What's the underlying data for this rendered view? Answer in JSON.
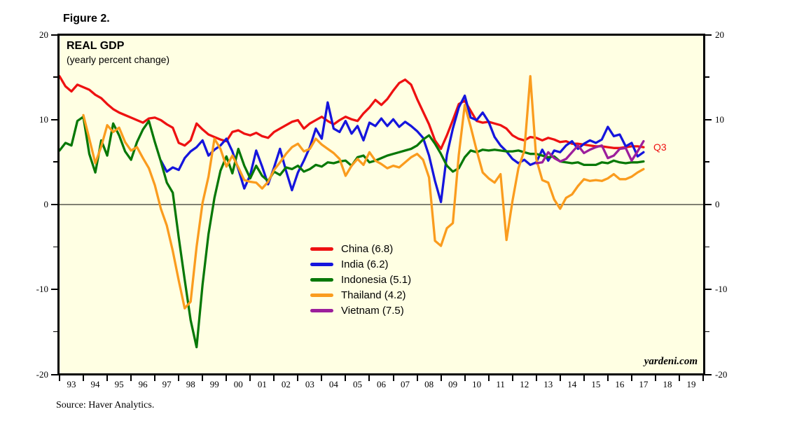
{
  "figure_label": "Figure 2.",
  "chart": {
    "title": "REAL GDP",
    "subtitle": "(yearly percent change)",
    "watermark": "yardeni.com",
    "source_note": "Source: Haver Analytics.",
    "background_color": "#FFFFE3",
    "annotation": {
      "text": "Q3",
      "color": "#EE1111"
    }
  },
  "chart_data": {
    "type": "line",
    "title": "REAL GDP",
    "subtitle": "(yearly percent change)",
    "x_axis": {
      "start": 1993,
      "end": 2020,
      "tick_every_years": 1,
      "tick_labels": [
        "93",
        "94",
        "95",
        "96",
        "97",
        "98",
        "99",
        "00",
        "01",
        "02",
        "03",
        "04",
        "05",
        "06",
        "07",
        "08",
        "09",
        "10",
        "11",
        "12",
        "13",
        "14",
        "15",
        "16",
        "17",
        "18",
        "19"
      ]
    },
    "ylim": [
      -20,
      20
    ],
    "y_ticks_major": [
      20,
      10,
      0,
      -10,
      -20
    ],
    "y_ticks_minor": [
      15,
      5,
      -5,
      -15
    ],
    "zero_line": true,
    "points_per_year": 4,
    "legend_position": "center-left",
    "series": [
      {
        "name": "China",
        "label": "China (6.8)",
        "color": "#EE1111",
        "start": 1993.0,
        "values": [
          15.2,
          14.0,
          13.4,
          14.2,
          13.9,
          13.6,
          13.0,
          12.6,
          11.9,
          11.3,
          10.9,
          10.6,
          10.3,
          10.0,
          9.7,
          10.2,
          10.3,
          10.0,
          9.5,
          9.1,
          7.3,
          7.0,
          7.6,
          9.6,
          8.9,
          8.3,
          8.0,
          7.7,
          7.5,
          8.6,
          8.8,
          8.4,
          8.2,
          8.5,
          8.1,
          7.9,
          8.6,
          9.0,
          9.4,
          9.8,
          10.0,
          9.0,
          9.6,
          10.0,
          10.4,
          9.9,
          9.5,
          10.0,
          10.4,
          10.1,
          9.9,
          10.8,
          11.5,
          12.4,
          11.8,
          12.5,
          13.5,
          14.4,
          14.8,
          14.2,
          12.5,
          11.0,
          9.5,
          7.6,
          6.6,
          8.2,
          10.0,
          11.9,
          12.3,
          11.1,
          9.9,
          9.7,
          9.8,
          9.6,
          9.4,
          9.0,
          8.2,
          7.8,
          7.6,
          8.0,
          7.9,
          7.6,
          7.9,
          7.7,
          7.4,
          7.5,
          7.2,
          7.2,
          7.1,
          7.0,
          6.9,
          6.9,
          6.8,
          6.7,
          6.7,
          6.8,
          6.9,
          6.9,
          6.8
        ]
      },
      {
        "name": "India",
        "label": "India (6.2)",
        "color": "#1515DD",
        "start": 1997.25,
        "values": [
          5.2,
          3.9,
          4.4,
          4.1,
          5.5,
          6.3,
          6.8,
          7.6,
          5.8,
          6.5,
          7.0,
          7.8,
          6.3,
          4.2,
          1.9,
          3.5,
          6.4,
          4.5,
          2.4,
          4.4,
          6.6,
          4.0,
          1.7,
          3.8,
          5.2,
          6.8,
          9.0,
          7.8,
          12.1,
          9.0,
          8.6,
          9.9,
          8.4,
          9.3,
          7.6,
          9.7,
          9.3,
          10.2,
          9.3,
          10.1,
          9.2,
          9.8,
          9.3,
          8.7,
          7.9,
          5.8,
          2.8,
          0.3,
          5.9,
          9.0,
          11.5,
          12.9,
          10.3,
          10.0,
          10.9,
          9.8,
          8.0,
          7.0,
          6.3,
          5.4,
          4.9,
          5.3,
          4.7,
          5.0,
          6.5,
          5.2,
          6.4,
          6.2,
          7.0,
          7.5,
          6.6,
          7.2,
          7.6,
          7.3,
          7.7,
          9.2,
          8.1,
          8.3,
          6.9,
          7.3,
          5.7,
          6.2
        ]
      },
      {
        "name": "Indonesia",
        "label": "Indonesia (5.1)",
        "color": "#077807",
        "start": 1993.0,
        "values": [
          6.4,
          7.3,
          7.0,
          9.9,
          10.4,
          6.0,
          3.8,
          7.6,
          5.8,
          9.6,
          8.2,
          6.3,
          5.3,
          7.4,
          8.9,
          9.9,
          7.4,
          5.1,
          2.6,
          1.4,
          -3.9,
          -8.9,
          -13.7,
          -16.9,
          -9.5,
          -3.5,
          0.8,
          4.0,
          5.7,
          3.7,
          6.6,
          4.6,
          3.1,
          4.6,
          3.4,
          2.8,
          3.9,
          3.5,
          4.4,
          4.2,
          4.6,
          3.9,
          4.2,
          4.7,
          4.5,
          5.0,
          4.9,
          5.1,
          5.2,
          4.6,
          5.6,
          5.8,
          5.0,
          5.2,
          5.5,
          5.8,
          6.0,
          6.2,
          6.4,
          6.6,
          7.0,
          7.7,
          8.2,
          7.2,
          6.0,
          4.6,
          3.9,
          4.3,
          5.6,
          6.4,
          6.2,
          6.5,
          6.4,
          6.5,
          6.4,
          6.3,
          6.3,
          6.4,
          6.2,
          6.0,
          6.0,
          5.8,
          5.6,
          5.7,
          5.1,
          5.0,
          4.9,
          5.0,
          4.7,
          4.7,
          4.7,
          5.0,
          4.9,
          5.2,
          5.0,
          4.9,
          5.0,
          5.0,
          5.1
        ]
      },
      {
        "name": "Thailand",
        "label": "Thailand (4.2)",
        "color": "#FA9C1E",
        "start": 1994.0,
        "values": [
          10.6,
          7.8,
          4.9,
          6.9,
          9.4,
          8.6,
          9.1,
          7.4,
          6.4,
          6.8,
          5.5,
          4.3,
          2.3,
          -0.5,
          -2.5,
          -5.5,
          -9.0,
          -12.3,
          -11.5,
          -5.0,
          0.2,
          3.3,
          7.8,
          6.6,
          4.5,
          5.8,
          4.4,
          2.9,
          2.7,
          2.6,
          1.9,
          2.7,
          4.1,
          5.0,
          6.0,
          6.8,
          7.2,
          6.3,
          6.6,
          7.8,
          7.1,
          6.6,
          6.1,
          5.4,
          3.4,
          4.6,
          5.4,
          4.7,
          6.2,
          5.2,
          4.8,
          4.3,
          4.6,
          4.4,
          5.0,
          5.6,
          6.0,
          5.3,
          3.2,
          -4.3,
          -4.9,
          -2.8,
          -2.2,
          5.9,
          11.8,
          9.2,
          6.4,
          3.8,
          3.1,
          2.6,
          3.6,
          -4.2,
          0.4,
          4.3,
          6.4,
          15.2,
          5.4,
          2.9,
          2.6,
          0.6,
          -0.5,
          0.8,
          1.2,
          2.2,
          3.0,
          2.8,
          2.9,
          2.8,
          3.1,
          3.6,
          3.0,
          3.0,
          3.3,
          3.8,
          4.2
        ]
      },
      {
        "name": "Vietnam",
        "label": "Vietnam (7.5)",
        "color": "#9C1E9C",
        "start": 2013.0,
        "values": [
          4.9,
          5.0,
          6.2,
          5.5,
          5.1,
          5.4,
          6.2,
          7.0,
          6.1,
          6.5,
          6.8,
          7.0,
          5.5,
          5.8,
          6.6,
          6.7,
          5.2,
          6.3,
          7.5
        ]
      }
    ],
    "annotation": {
      "text": "Q3",
      "color": "#EE1111",
      "attached_to": "last-point"
    },
    "watermark": "yardeni.com",
    "source": "Source: Haver Analytics."
  }
}
